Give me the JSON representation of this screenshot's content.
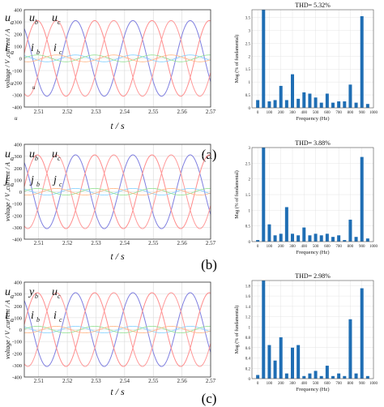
{
  "chart_data": [
    {
      "type": "line",
      "panel_label": "(a)",
      "xlabel": "t / s",
      "ylabel": "voltage / V ,current / A",
      "xlim": [
        2.505,
        2.57
      ],
      "ylim": [
        -400,
        400
      ],
      "x_ticks": [
        "2.51",
        "2.52",
        "2.53",
        "2.54",
        "2.55",
        "2.56",
        "2.57"
      ],
      "y_ticks": [
        "400",
        "300",
        "200",
        "100",
        "0",
        "-100",
        "-200",
        "-300",
        "-400"
      ],
      "frequency_hz": 50,
      "annotations": [
        {
          "base": "u",
          "sub": "a"
        },
        {
          "base": "u",
          "sub": "b"
        },
        {
          "base": "u",
          "sub": "c"
        },
        {
          "base": "i",
          "sub": "a"
        },
        {
          "base": "i",
          "sub": "b"
        },
        {
          "base": "i",
          "sub": "c"
        }
      ],
      "stray_labels": [
        "u",
        "u",
        "u"
      ],
      "series": [
        {
          "key": "ua",
          "amplitude": 311,
          "phase_deg": 38,
          "color": "#7f7fe0"
        },
        {
          "key": "ub",
          "amplitude": 311,
          "phase_deg": -82,
          "color": "#ff8c8c"
        },
        {
          "key": "uc",
          "amplitude": 311,
          "phase_deg": 158,
          "color": "#ff9a9a"
        },
        {
          "key": "ia",
          "amplitude": 28,
          "phase_deg": 38,
          "color": "#80cfff"
        },
        {
          "key": "ib",
          "amplitude": 28,
          "phase_deg": -82,
          "color": "#8fdf8f"
        },
        {
          "key": "ic",
          "amplitude": 28,
          "phase_deg": 158,
          "color": "#ffb27f"
        }
      ]
    },
    {
      "type": "line",
      "panel_label": "(b)",
      "xlabel": "t / s",
      "ylabel": "voltage / V ,current / A",
      "xlim": [
        2.505,
        2.57
      ],
      "ylim": [
        -400,
        400
      ],
      "x_ticks": [
        "2.51",
        "2.52",
        "2.53",
        "2.54",
        "2.55",
        "2.56",
        "2.57"
      ],
      "y_ticks": [
        "400",
        "300",
        "200",
        "100",
        "0",
        "-100",
        "-200",
        "-300",
        "-400"
      ],
      "frequency_hz": 50,
      "annotations": [
        {
          "base": "u",
          "sub": "a"
        },
        {
          "base": "u",
          "sub": "b"
        },
        {
          "base": "u",
          "sub": "c"
        },
        {
          "base": "j",
          "sub": "a"
        },
        {
          "base": "j",
          "sub": "b"
        },
        {
          "base": "j",
          "sub": "c"
        }
      ],
      "series": [
        {
          "key": "ua",
          "amplitude": 311,
          "phase_deg": 38,
          "color": "#7f7fe0"
        },
        {
          "key": "ub",
          "amplitude": 311,
          "phase_deg": -82,
          "color": "#ff8c8c"
        },
        {
          "key": "uc",
          "amplitude": 311,
          "phase_deg": 158,
          "color": "#ff9a9a"
        },
        {
          "key": "ia",
          "amplitude": 28,
          "phase_deg": 38,
          "color": "#80cfff"
        },
        {
          "key": "ib",
          "amplitude": 28,
          "phase_deg": -82,
          "color": "#8fdf8f"
        },
        {
          "key": "ic",
          "amplitude": 28,
          "phase_deg": 158,
          "color": "#ffb27f"
        }
      ]
    },
    {
      "type": "line",
      "panel_label": "(c)",
      "xlabel": "t / s",
      "ylabel": "voltage / V ,current / A",
      "xlim": [
        2.505,
        2.57
      ],
      "ylim": [
        -400,
        400
      ],
      "x_ticks": [
        "2.51",
        "2.52",
        "2.53",
        "2.54",
        "2.55",
        "2.56",
        "2.57"
      ],
      "y_ticks": [
        "400",
        "300",
        "200",
        "100",
        "0",
        "-100",
        "-200",
        "-300",
        "-400"
      ],
      "frequency_hz": 50,
      "annotations": [
        {
          "base": "u",
          "sub": "a"
        },
        {
          "base": "y",
          "sub": "b"
        },
        {
          "base": "u",
          "sub": "c"
        },
        {
          "base": "i",
          "sub": "a"
        },
        {
          "base": "i",
          "sub": "b"
        },
        {
          "base": "i",
          "sub": "c"
        }
      ],
      "series": [
        {
          "key": "ua",
          "amplitude": 311,
          "phase_deg": 38,
          "color": "#7f7fe0"
        },
        {
          "key": "ub",
          "amplitude": 311,
          "phase_deg": -82,
          "color": "#ff8c8c"
        },
        {
          "key": "uc",
          "amplitude": 311,
          "phase_deg": 158,
          "color": "#ff9a9a"
        },
        {
          "key": "ia",
          "amplitude": 28,
          "phase_deg": 38,
          "color": "#80cfff"
        },
        {
          "key": "ib",
          "amplitude": 28,
          "phase_deg": -82,
          "color": "#8fdf8f"
        },
        {
          "key": "ic",
          "amplitude": 28,
          "phase_deg": 158,
          "color": "#ffb27f"
        }
      ]
    },
    {
      "type": "bar",
      "title": "THD= 5.32%",
      "xlabel": "Frequency (Hz)",
      "ylabel": "Mag (% of fundamental)",
      "xlim": [
        -50,
        1000
      ],
      "ylim": [
        0,
        3.8
      ],
      "x_ticks": [
        "0",
        "100",
        "200",
        "300",
        "400",
        "500",
        "600",
        "700",
        "800",
        "900",
        "1000"
      ],
      "y_ticks": [
        "0",
        "0.5",
        "1",
        "1.5",
        "2",
        "2.5",
        "3",
        "3.5"
      ],
      "color": "#1f6eb4",
      "x": [
        0,
        50,
        100,
        150,
        200,
        250,
        300,
        350,
        400,
        450,
        500,
        550,
        600,
        650,
        700,
        750,
        800,
        850,
        900,
        950
      ],
      "values": [
        0.3,
        3.8,
        0.25,
        0.3,
        0.85,
        0.3,
        1.3,
        0.35,
        0.6,
        0.55,
        0.4,
        0.2,
        0.55,
        0.2,
        0.25,
        0.25,
        0.9,
        0.2,
        3.55,
        0.15
      ]
    },
    {
      "type": "bar",
      "title": "THD= 3.88%",
      "xlabel": "Frequency (Hz)",
      "ylabel": "Mag (% of fundamental)",
      "xlim": [
        -50,
        1000
      ],
      "ylim": [
        0,
        3
      ],
      "x_ticks": [
        "0",
        "100",
        "200",
        "300",
        "400",
        "500",
        "600",
        "700",
        "800",
        "900",
        "1000"
      ],
      "y_ticks": [
        "0",
        "0.5",
        "1",
        "1.5",
        "2",
        "2.5",
        "3"
      ],
      "color": "#1f6eb4",
      "x": [
        0,
        50,
        100,
        150,
        200,
        250,
        300,
        350,
        400,
        450,
        500,
        550,
        600,
        650,
        700,
        750,
        800,
        850,
        900,
        950
      ],
      "values": [
        0.05,
        3.0,
        0.55,
        0.2,
        0.25,
        1.1,
        0.25,
        0.2,
        0.45,
        0.2,
        0.25,
        0.2,
        0.25,
        0.15,
        0.2,
        0.05,
        0.7,
        0.15,
        2.7,
        0.1
      ]
    },
    {
      "type": "bar",
      "title": "THD= 2.98%",
      "xlabel": "Frequency (Hz)",
      "ylabel": "Mag (% of fundamental)",
      "xlim": [
        -50,
        1000
      ],
      "ylim": [
        0,
        1.9
      ],
      "x_ticks": [
        "0",
        "100",
        "200",
        "300",
        "400",
        "500",
        "600",
        "700",
        "800",
        "900",
        "1000"
      ],
      "y_ticks": [
        "0",
        "0.2",
        "0.4",
        "0.6",
        "0.8",
        "1",
        "1.2",
        "1.4",
        "1.6",
        "1.8"
      ],
      "color": "#1f6eb4",
      "x": [
        0,
        50,
        100,
        150,
        200,
        250,
        300,
        350,
        400,
        450,
        500,
        550,
        600,
        650,
        700,
        750,
        800,
        850,
        900,
        950
      ],
      "values": [
        0.07,
        1.9,
        0.65,
        0.35,
        0.8,
        0.1,
        0.6,
        0.65,
        0.05,
        0.1,
        0.15,
        0.05,
        0.25,
        0.05,
        0.1,
        0.05,
        1.15,
        0.1,
        1.75,
        0.05
      ]
    }
  ]
}
